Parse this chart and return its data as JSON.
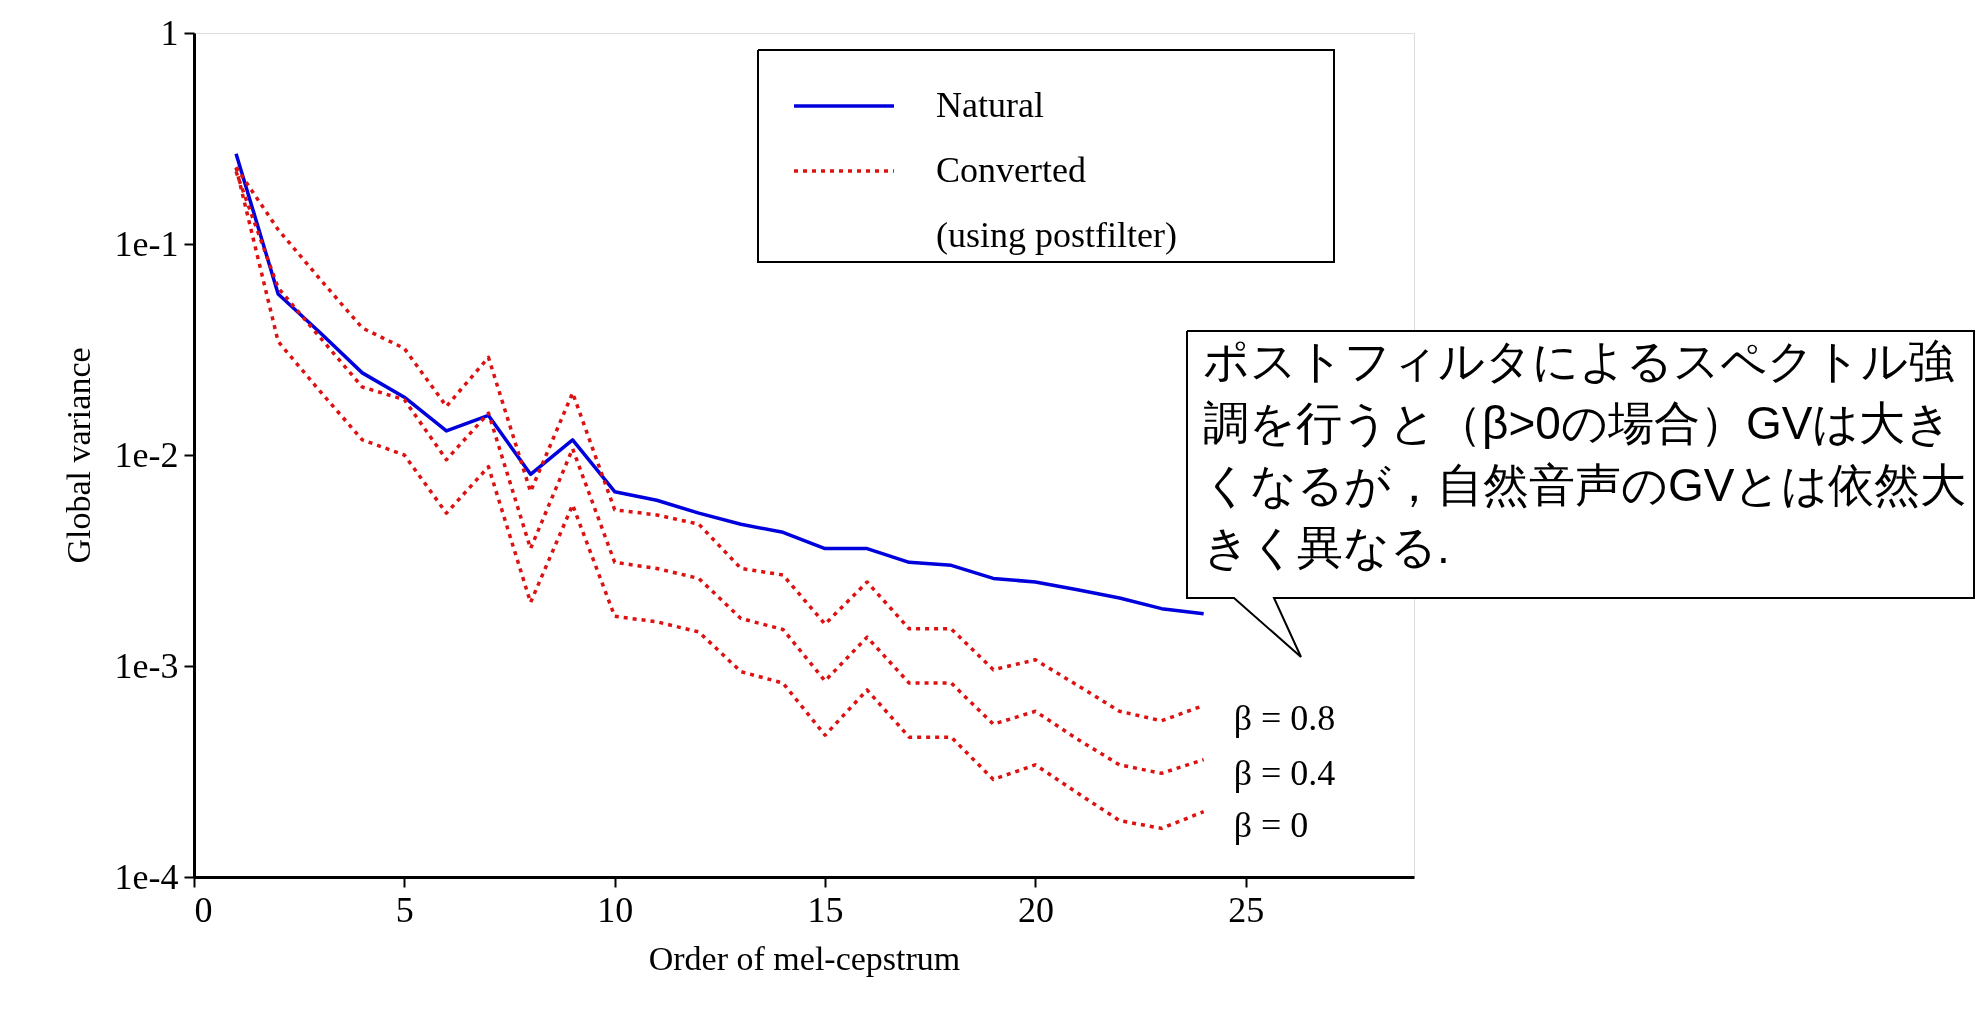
{
  "chart_data": {
    "type": "line",
    "xlabel": "Order of mel-cepstrum",
    "ylabel": "Global variance",
    "log": "y",
    "xlim": [
      0,
      29
    ],
    "xticks": [
      0,
      5,
      10,
      15,
      20,
      25
    ],
    "ylim": [
      0.0001,
      1
    ],
    "yticks": [
      {
        "value": 1,
        "label": "1"
      },
      {
        "value": 0.1,
        "label": "1e-1"
      },
      {
        "value": 0.01,
        "label": "1e-2"
      },
      {
        "value": 0.001,
        "label": "1e-3"
      },
      {
        "value": 0.0001,
        "label": "1e-4"
      }
    ],
    "x": [
      1,
      2,
      3,
      4,
      5,
      6,
      7,
      8,
      9,
      10,
      11,
      12,
      13,
      14,
      15,
      16,
      17,
      18,
      19,
      20,
      21,
      22,
      23,
      24
    ],
    "grid": false,
    "legend": "top right",
    "marker": "none",
    "series": [
      {
        "name": "Natural",
        "color": "#0000dd",
        "line_style": "solid",
        "values": [
          0.268,
          0.058,
          0.038,
          0.0245,
          0.0188,
          0.013,
          0.0154,
          0.0081,
          0.0118,
          0.0067,
          0.0061,
          0.0053,
          0.0047,
          0.0043,
          0.0036,
          0.0036,
          0.0031,
          0.003,
          0.0026,
          0.0025,
          0.0023,
          0.0021,
          0.00187,
          0.00177
        ]
      },
      {
        "name": "β = 0.8",
        "color": "#dd1111",
        "line_style": "dotted",
        "values": [
          0.231,
          0.117,
          0.068,
          0.04,
          0.032,
          0.017,
          0.029,
          0.0067,
          0.0197,
          0.0055,
          0.0052,
          0.0047,
          0.0029,
          0.0027,
          0.00158,
          0.0025,
          0.0015,
          0.0015,
          0.00096,
          0.00107,
          0.00081,
          0.00061,
          0.00055,
          0.00065
        ]
      },
      {
        "name": "β = 0.4",
        "color": "#dd1111",
        "line_style": "dotted",
        "values": [
          0.22,
          0.062,
          0.036,
          0.021,
          0.0183,
          0.0095,
          0.0158,
          0.0036,
          0.0107,
          0.0031,
          0.0029,
          0.0026,
          0.00168,
          0.00149,
          0.00085,
          0.00137,
          0.00083,
          0.00083,
          0.00053,
          0.00061,
          0.00045,
          0.00034,
          0.00031,
          0.00036
        ]
      },
      {
        "name": "β = 0",
        "color": "#dd1111",
        "line_style": "dotted",
        "values": [
          0.23,
          0.0345,
          0.02,
          0.0118,
          0.01,
          0.0053,
          0.0088,
          0.002,
          0.0058,
          0.00172,
          0.00162,
          0.00145,
          0.00094,
          0.00083,
          0.00047,
          0.00077,
          0.00046,
          0.00046,
          0.00029,
          0.00034,
          0.00025,
          0.000185,
          0.00017,
          0.000204
        ]
      }
    ],
    "annotations": [
      "Converted\n(using postfilter)",
      "ポストフィルタによるスペクトル強調を行うと（β>0の場合）GVは大きくなるが，自然音声のGVとは依然大きく異なる."
    ]
  }
}
